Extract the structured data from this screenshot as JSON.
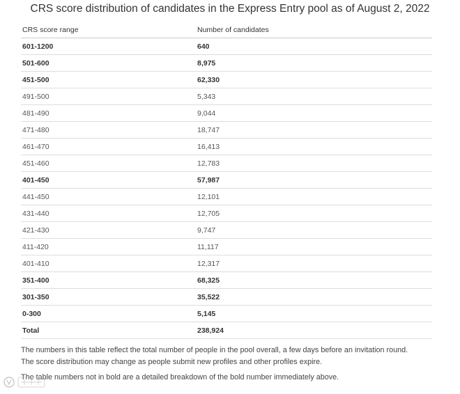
{
  "caption": "CRS score distribution of candidates in the Express Entry pool as of August 2, 2022",
  "table": {
    "headers": [
      "CRS score range",
      "Number of candidates"
    ],
    "rows": [
      {
        "range": "601-1200",
        "count": "640",
        "bold": true
      },
      {
        "range": "501-600",
        "count": "8,975",
        "bold": true
      },
      {
        "range": "451-500",
        "count": "62,330",
        "bold": true
      },
      {
        "range": "491-500",
        "count": "5,343",
        "bold": false
      },
      {
        "range": "481-490",
        "count": "9,044",
        "bold": false
      },
      {
        "range": "471-480",
        "count": "18,747",
        "bold": false
      },
      {
        "range": "461-470",
        "count": "16,413",
        "bold": false
      },
      {
        "range": "451-460",
        "count": "12,783",
        "bold": false
      },
      {
        "range": "401-450",
        "count": "57,987",
        "bold": true
      },
      {
        "range": "441-450",
        "count": "12,101",
        "bold": false
      },
      {
        "range": "431-440",
        "count": "12,705",
        "bold": false
      },
      {
        "range": "421-430",
        "count": "9,747",
        "bold": false
      },
      {
        "range": "411-420",
        "count": "11,117",
        "bold": false
      },
      {
        "range": "401-410",
        "count": "12,317",
        "bold": false
      },
      {
        "range": "351-400",
        "count": "68,325",
        "bold": true
      },
      {
        "range": "301-350",
        "count": "35,522",
        "bold": true
      },
      {
        "range": "0-300",
        "count": "5,145",
        "bold": true
      }
    ],
    "total": {
      "label": "Total",
      "count": "238,924"
    }
  },
  "notes": {
    "line1": "The numbers in this table reflect the total number of people in the pool overall, a few days before an invitation round.",
    "line2": "The score distribution may change as people submit new profiles and other profiles expire.",
    "line3": "The table numbers not in bold are a detailed breakdown of the bold number immediately above."
  },
  "watermark_icon": "watermark-logo"
}
